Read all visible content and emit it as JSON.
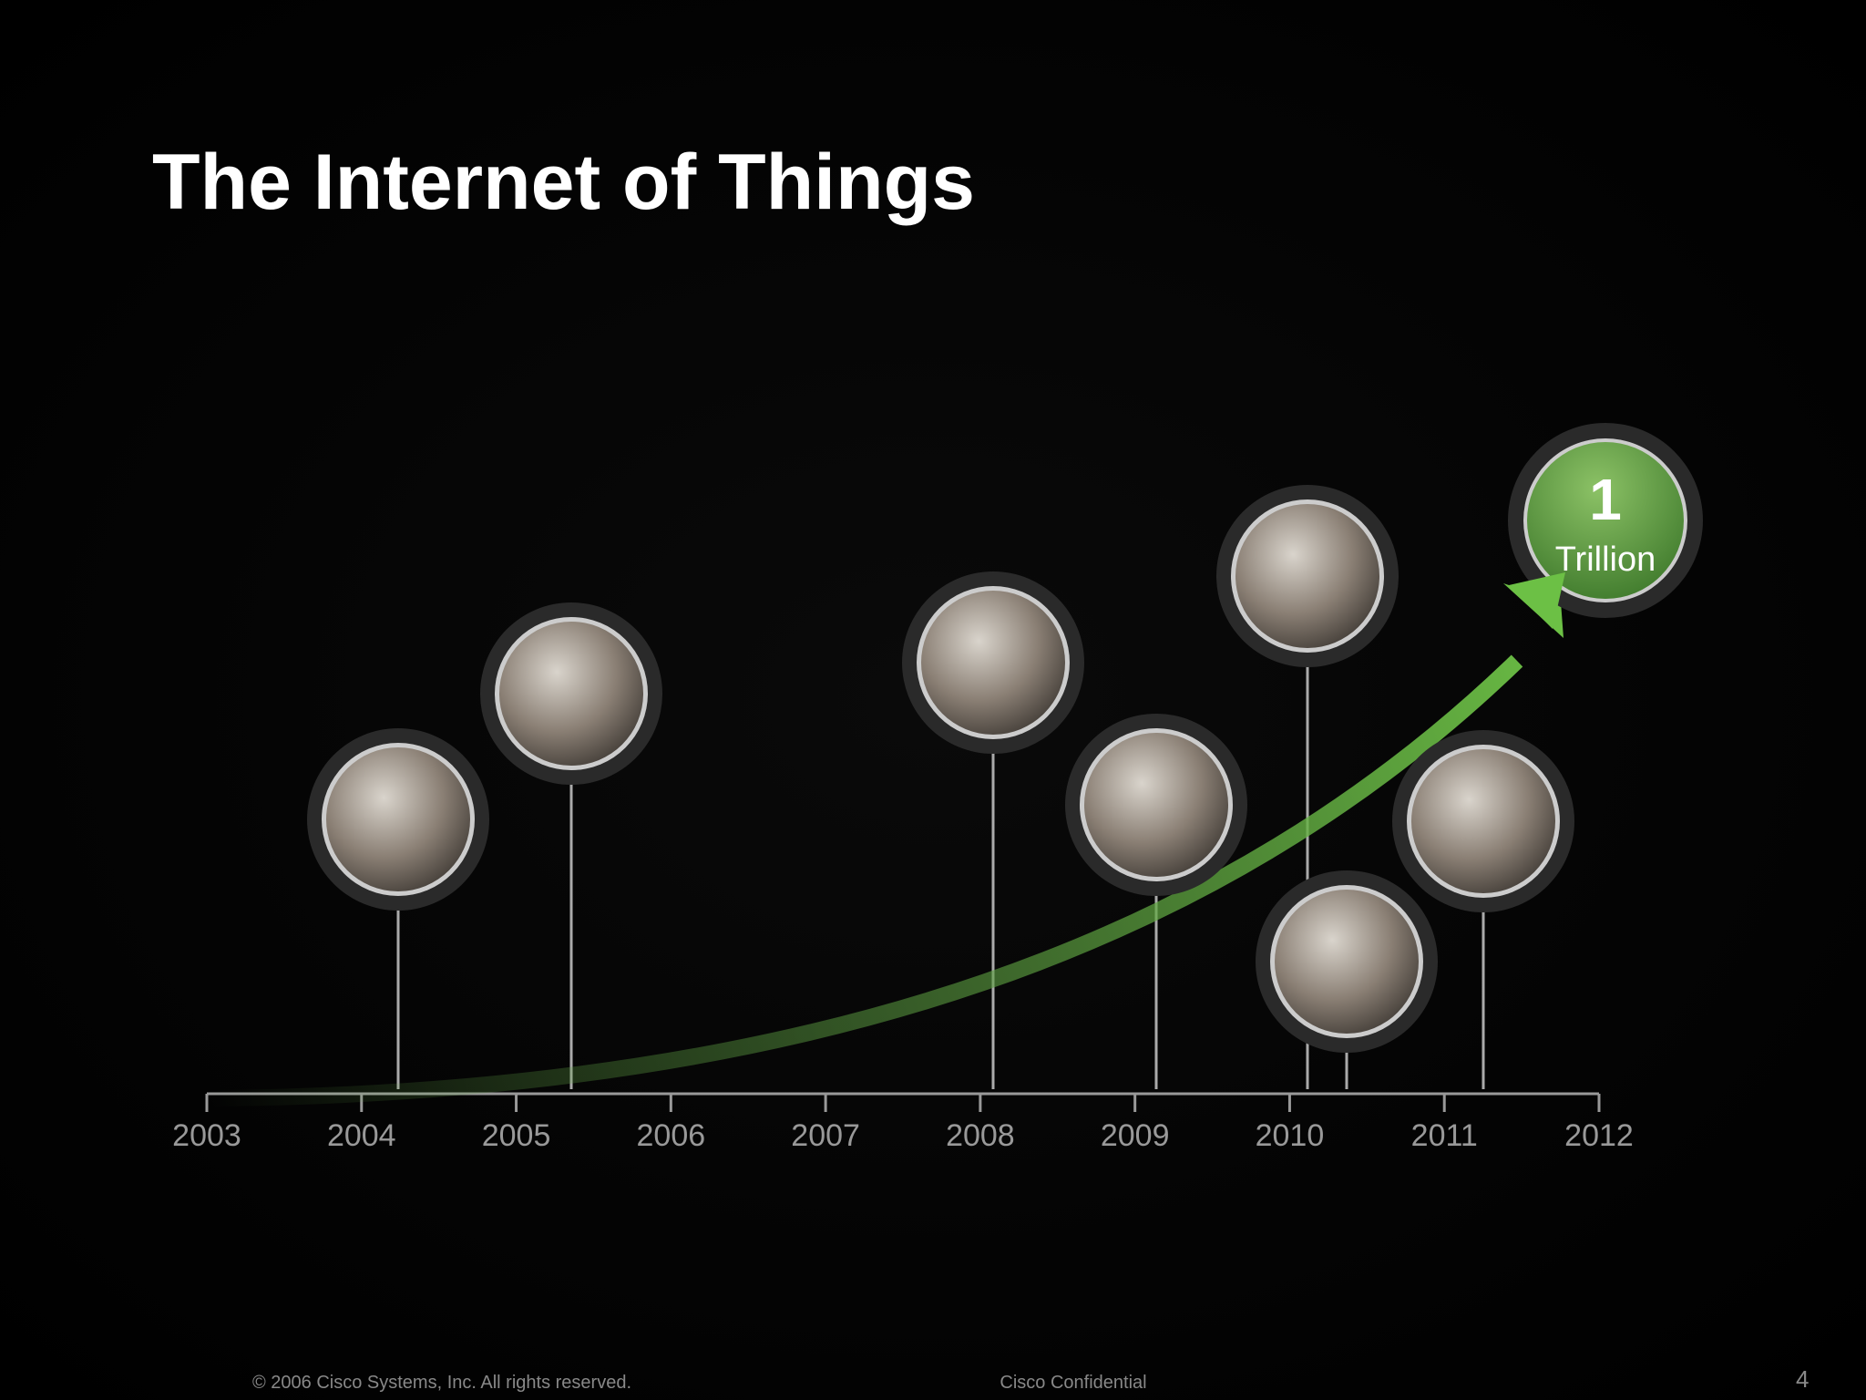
{
  "header": {
    "title": "The Internet of Things"
  },
  "timeline": {
    "years": [
      "2003",
      "2004",
      "2005",
      "2006",
      "2007",
      "2008",
      "2009",
      "2010",
      "2011",
      "2012"
    ]
  },
  "milestone": {
    "number": "1",
    "label": "Trillion"
  },
  "footer": {
    "copyright": "© 2006 Cisco Systems, Inc. All rights reserved.",
    "confidential": "Cisco Confidential",
    "page": "4"
  }
}
